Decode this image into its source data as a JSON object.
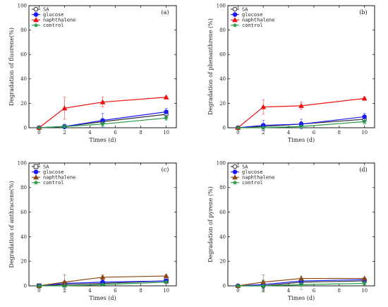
{
  "chart_data": [
    {
      "type": "line",
      "panel_label": "(a)",
      "xlabel": "Times (d)",
      "ylabel": "Degradation of fluorene(%)",
      "x": [
        0,
        2,
        5,
        10
      ],
      "xticks": [
        0,
        2,
        4,
        6,
        8,
        10
      ],
      "yticks": [
        0,
        20,
        40,
        60,
        80,
        100
      ],
      "xlim": [
        -0.8,
        10.8
      ],
      "ylim": [
        0,
        100
      ],
      "legend_position": "top-left",
      "series": [
        {
          "name": "SA",
          "color": "#333333",
          "marker": "open-circle",
          "values": [
            0,
            1,
            5,
            11
          ],
          "errors": [
            0,
            1,
            2,
            2
          ]
        },
        {
          "name": "glucose",
          "color": "#1a1aff",
          "marker": "filled-circle",
          "values": [
            0,
            1,
            6,
            13
          ],
          "errors": [
            0,
            2,
            6,
            3
          ]
        },
        {
          "name": "naphthalene",
          "color": "#ee1111",
          "marker": "triangle",
          "values": [
            0,
            16,
            21,
            25
          ],
          "errors": [
            0,
            9,
            4,
            1
          ]
        },
        {
          "name": "control",
          "color": "#229944",
          "marker": "star",
          "values": [
            0,
            1,
            3,
            8
          ],
          "errors": [
            0,
            1,
            2,
            2
          ]
        }
      ]
    },
    {
      "type": "line",
      "panel_label": "(b)",
      "xlabel": "Times (d)",
      "ylabel": "Degradation of phenanthrene (%)",
      "x": [
        0,
        2,
        5,
        10
      ],
      "xticks": [
        0,
        2,
        4,
        6,
        8,
        10
      ],
      "yticks": [
        0,
        20,
        40,
        60,
        80,
        100
      ],
      "xlim": [
        -0.8,
        10.8
      ],
      "ylim": [
        0,
        100
      ],
      "legend_position": "top-left",
      "series": [
        {
          "name": "SA",
          "color": "#333333",
          "marker": "open-circle",
          "values": [
            0,
            1,
            3,
            7
          ],
          "errors": [
            0,
            1,
            2,
            2
          ]
        },
        {
          "name": "glucose",
          "color": "#1a1aff",
          "marker": "filled-circle",
          "values": [
            0,
            2,
            3,
            9
          ],
          "errors": [
            0,
            4,
            4,
            3
          ]
        },
        {
          "name": "naphthalene",
          "color": "#ee1111",
          "marker": "triangle",
          "values": [
            0,
            17,
            18,
            24
          ],
          "errors": [
            0,
            6,
            3,
            1
          ]
        },
        {
          "name": "control",
          "color": "#229944",
          "marker": "star",
          "values": [
            0,
            0,
            1,
            5
          ],
          "errors": [
            0,
            1,
            1,
            2
          ]
        }
      ]
    },
    {
      "type": "line",
      "panel_label": "(c)",
      "xlabel": "Times (d)",
      "ylabel": "Degradation of anthracene(%)",
      "x": [
        0,
        2,
        5,
        10
      ],
      "xticks": [
        0,
        2,
        4,
        6,
        8,
        10
      ],
      "yticks": [
        0,
        20,
        40,
        60,
        80,
        100
      ],
      "xlim": [
        -0.8,
        10.8
      ],
      "ylim": [
        0,
        100
      ],
      "legend_position": "top-left",
      "series": [
        {
          "name": "SA",
          "color": "#333333",
          "marker": "open-square",
          "values": [
            0,
            1,
            2,
            4
          ],
          "errors": [
            0,
            2,
            1,
            1
          ]
        },
        {
          "name": "glucose",
          "color": "#1a1aff",
          "marker": "filled-circle",
          "values": [
            0,
            2,
            3,
            4
          ],
          "errors": [
            0,
            2,
            2,
            1
          ]
        },
        {
          "name": "naphthalene",
          "color": "#8b4513",
          "marker": "triangle",
          "values": [
            0,
            3,
            7,
            8
          ],
          "errors": [
            0,
            6,
            2,
            1
          ]
        },
        {
          "name": "control",
          "color": "#229944",
          "marker": "star",
          "values": [
            0,
            0,
            1,
            3
          ],
          "errors": [
            0,
            1,
            1,
            1
          ]
        }
      ]
    },
    {
      "type": "line",
      "panel_label": "(d)",
      "xlabel": "Times (d)",
      "ylabel": "Degradation of pyrene (%)",
      "x": [
        0,
        2,
        5,
        10
      ],
      "xticks": [
        0,
        2,
        4,
        6,
        8,
        10
      ],
      "yticks": [
        0,
        20,
        40,
        60,
        80,
        100
      ],
      "xlim": [
        -0.8,
        10.8
      ],
      "ylim": [
        0,
        100
      ],
      "legend_position": "top-left",
      "series": [
        {
          "name": "SA",
          "color": "#333333",
          "marker": "open-circle",
          "values": [
            0,
            0,
            3,
            4
          ],
          "errors": [
            0,
            4,
            3,
            1
          ]
        },
        {
          "name": "glucose",
          "color": "#1a1aff",
          "marker": "filled-circle",
          "values": [
            0,
            1,
            4,
            5
          ],
          "errors": [
            0,
            3,
            2,
            1
          ]
        },
        {
          "name": "naphthalene",
          "color": "#8b4513",
          "marker": "triangle",
          "values": [
            0,
            3,
            6,
            6
          ],
          "errors": [
            0,
            6,
            2,
            1
          ]
        },
        {
          "name": "control",
          "color": "#229944",
          "marker": "star",
          "values": [
            0,
            0,
            1,
            2
          ],
          "errors": [
            0,
            5,
            4,
            1
          ]
        }
      ]
    }
  ]
}
